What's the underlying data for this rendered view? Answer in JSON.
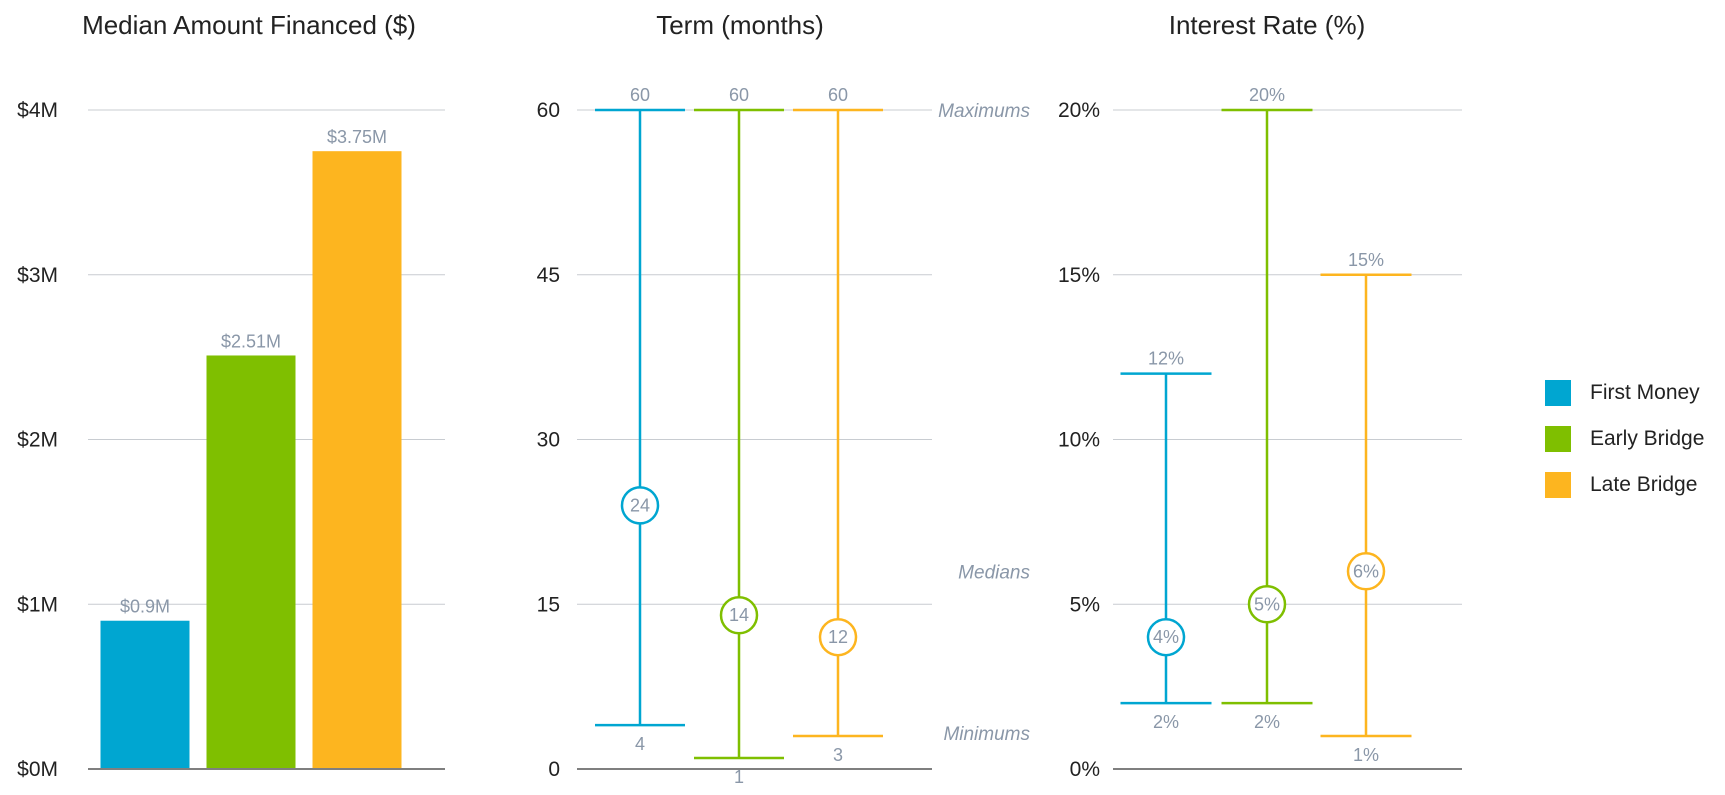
{
  "chart_data": [
    {
      "type": "bar",
      "title": "Median Amount Financed ($)",
      "categories": [
        "First Money",
        "Early Bridge",
        "Late Bridge"
      ],
      "values": [
        0.9,
        2.51,
        3.75
      ],
      "data_labels": [
        "$0.9M",
        "$2.51M",
        "$3.75M"
      ],
      "colors": [
        "#00a6d1",
        "#7fbf00",
        "#fdb51f"
      ],
      "ylim": [
        0,
        4
      ],
      "yticks": [
        0,
        1,
        2,
        3,
        4
      ],
      "ytick_labels": [
        "$0M",
        "$1M",
        "$2M",
        "$3M",
        "$4M"
      ],
      "grid": true
    },
    {
      "type": "range",
      "title": "Term (months)",
      "categories": [
        "First Money",
        "Early Bridge",
        "Late Bridge"
      ],
      "series": [
        {
          "name": "Maximums",
          "values": [
            60,
            60,
            60
          ],
          "labels": [
            "60",
            "60",
            "60"
          ]
        },
        {
          "name": "Medians",
          "values": [
            24,
            14,
            12
          ],
          "labels": [
            "24",
            "14",
            "12"
          ]
        },
        {
          "name": "Minimums",
          "values": [
            4,
            1,
            3
          ],
          "labels": [
            "4",
            "1",
            "3"
          ]
        }
      ],
      "annotations": [
        "Maximums",
        "Medians",
        "Minimums"
      ],
      "colors": [
        "#00a6d1",
        "#7fbf00",
        "#fdb51f"
      ],
      "ylim": [
        0,
        60
      ],
      "yticks": [
        0,
        15,
        30,
        45,
        60
      ],
      "ytick_labels": [
        "0",
        "15",
        "30",
        "45",
        "60"
      ],
      "grid": true
    },
    {
      "type": "range",
      "title": "Interest Rate (%)",
      "categories": [
        "First Money",
        "Early Bridge",
        "Late Bridge"
      ],
      "series": [
        {
          "name": "Maximums",
          "values": [
            12,
            20,
            15
          ],
          "labels": [
            "12%",
            "20%",
            "15%"
          ]
        },
        {
          "name": "Medians",
          "values": [
            4,
            5,
            6
          ],
          "labels": [
            "4%",
            "5%",
            "6%"
          ]
        },
        {
          "name": "Minimums",
          "values": [
            2,
            2,
            1
          ],
          "labels": [
            "2%",
            "2%",
            "1%"
          ]
        }
      ],
      "colors": [
        "#00a6d1",
        "#7fbf00",
        "#fdb51f"
      ],
      "ylim": [
        0,
        20
      ],
      "yticks": [
        0,
        5,
        10,
        15,
        20
      ],
      "ytick_labels": [
        "0%",
        "5%",
        "10%",
        "15%",
        "20%"
      ],
      "grid": true
    }
  ],
  "legend": {
    "placement": "right",
    "items": [
      {
        "label": "First Money",
        "color": "#00a6d1"
      },
      {
        "label": "Early Bridge",
        "color": "#7fbf00"
      },
      {
        "label": "Late Bridge",
        "color": "#fdb51f"
      }
    ]
  }
}
